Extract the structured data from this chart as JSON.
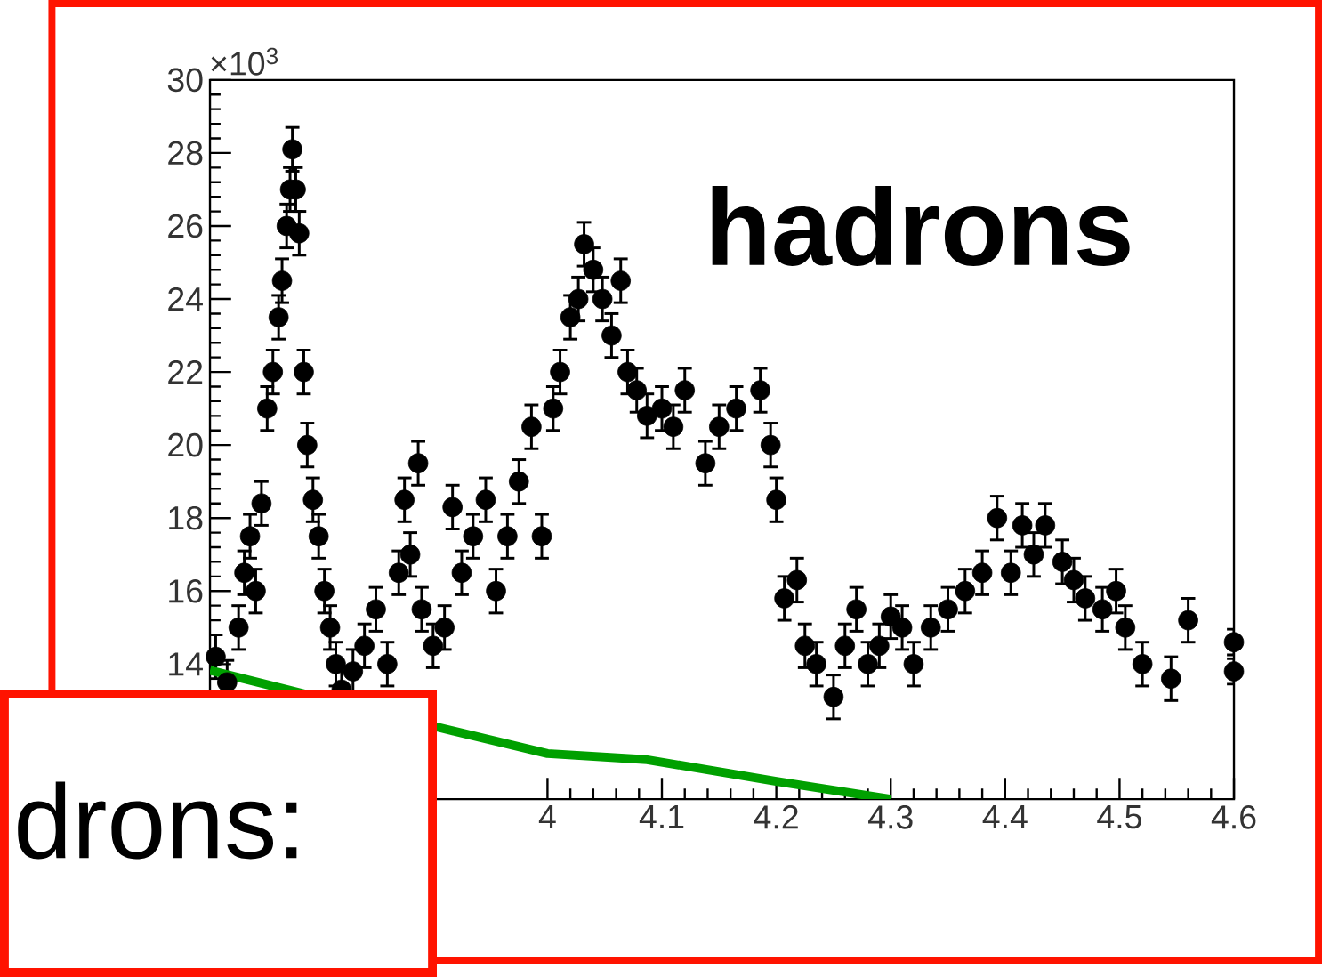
{
  "chart_data": {
    "type": "scatter",
    "title": "hadrons",
    "annotations": [
      "×10$^{3}$",
      "drons:"
    ],
    "xlim": [
      3.705,
      4.6
    ],
    "ylim": [
      10.3,
      30
    ],
    "xticks": [
      4,
      4.1,
      4.2,
      4.3,
      4.4,
      4.5,
      4.6
    ],
    "yticks": [
      14,
      16,
      18,
      20,
      22,
      24,
      26,
      28,
      30
    ],
    "grid": false,
    "series": [
      {
        "color": "#000000",
        "marker": "circle",
        "x": [
          3.71,
          3.72,
          3.73,
          3.735,
          3.74,
          3.745,
          3.75,
          3.755,
          3.76,
          3.765,
          3.768,
          3.772,
          3.775,
          3.777,
          3.78,
          3.783,
          3.787,
          3.79,
          3.795,
          3.8,
          3.805,
          3.81,
          3.815,
          3.82,
          3.83,
          3.84,
          3.85,
          3.86,
          3.87,
          3.875,
          3.88,
          3.887,
          3.89,
          3.9,
          3.91,
          3.917,
          3.925,
          3.935,
          3.946,
          3.955,
          3.965,
          3.975,
          3.986,
          3.995,
          4.005,
          4.011,
          4.02,
          4.027,
          4.032,
          4.04,
          4.048,
          4.056,
          4.064,
          4.07,
          4.078,
          4.087,
          4.1,
          4.11,
          4.12,
          4.138,
          4.15,
          4.165,
          4.186,
          4.195,
          4.2,
          4.207,
          4.218,
          4.225,
          4.235,
          4.25,
          4.26,
          4.27,
          4.28,
          4.29,
          4.3,
          4.31,
          4.32,
          4.335,
          4.35,
          4.365,
          4.38,
          4.393,
          4.405,
          4.415,
          4.425,
          4.435,
          4.45,
          4.46,
          4.47,
          4.485,
          4.497,
          4.505,
          4.52,
          4.545,
          4.56,
          4.6,
          4.6
        ],
        "values": [
          14.2,
          13.5,
          15.0,
          16.5,
          17.5,
          16.0,
          18.4,
          21.0,
          22.0,
          23.5,
          24.5,
          26.0,
          27.0,
          28.1,
          27.0,
          25.8,
          22.0,
          20.0,
          18.5,
          17.5,
          16.0,
          15.0,
          14.0,
          13.3,
          13.8,
          14.5,
          15.5,
          14.0,
          16.5,
          18.5,
          17.0,
          19.5,
          15.5,
          14.5,
          15.0,
          18.3,
          16.5,
          17.5,
          18.5,
          16.0,
          17.5,
          19.0,
          20.5,
          17.5,
          21.0,
          22.0,
          23.5,
          24.0,
          25.5,
          24.8,
          24.0,
          23.0,
          24.5,
          22.0,
          21.5,
          20.8,
          21.0,
          20.5,
          21.5,
          19.5,
          20.5,
          21.0,
          21.5,
          20.0,
          18.5,
          15.8,
          16.3,
          14.5,
          14.0,
          13.1,
          14.5,
          15.5,
          14.0,
          14.5,
          15.3,
          15.0,
          14.0,
          15.0,
          15.5,
          16.0,
          16.5,
          18.0,
          16.5,
          17.8,
          17.0,
          17.8,
          16.8,
          16.3,
          15.8,
          15.5,
          16.0,
          15.0,
          14.0,
          13.6,
          15.2,
          14.6,
          13.8
        ],
        "errors": [
          0.6,
          0.6,
          0.6,
          0.6,
          0.6,
          0.6,
          0.6,
          0.6,
          0.6,
          0.6,
          0.6,
          0.6,
          0.6,
          0.6,
          0.6,
          0.6,
          0.6,
          0.6,
          0.6,
          0.6,
          0.6,
          0.6,
          0.6,
          0.6,
          0.6,
          0.6,
          0.6,
          0.6,
          0.6,
          0.6,
          0.6,
          0.6,
          0.6,
          0.6,
          0.6,
          0.6,
          0.6,
          0.6,
          0.6,
          0.6,
          0.6,
          0.6,
          0.6,
          0.6,
          0.6,
          0.6,
          0.6,
          0.6,
          0.6,
          0.6,
          0.6,
          0.6,
          0.6,
          0.6,
          0.6,
          0.6,
          0.6,
          0.6,
          0.6,
          0.6,
          0.6,
          0.6,
          0.6,
          0.6,
          0.6,
          0.6,
          0.6,
          0.6,
          0.6,
          0.6,
          0.6,
          0.6,
          0.6,
          0.6,
          0.6,
          0.6,
          0.6,
          0.6,
          0.6,
          0.6,
          0.6,
          0.6,
          0.6,
          0.6,
          0.6,
          0.6,
          0.6,
          0.6,
          0.6,
          0.6,
          0.6,
          0.6,
          0.6,
          0.6,
          0.6,
          0.35,
          0.35
        ]
      },
      {
        "type": "line",
        "color": "#00a000",
        "marker": "none",
        "x": [
          3.705,
          3.8,
          3.9,
          4.0,
          4.087,
          4.2,
          4.3
        ],
        "values": [
          13.83,
          null,
          12.3,
          11.55,
          11.38,
          10.79,
          10.3
        ]
      }
    ]
  }
}
